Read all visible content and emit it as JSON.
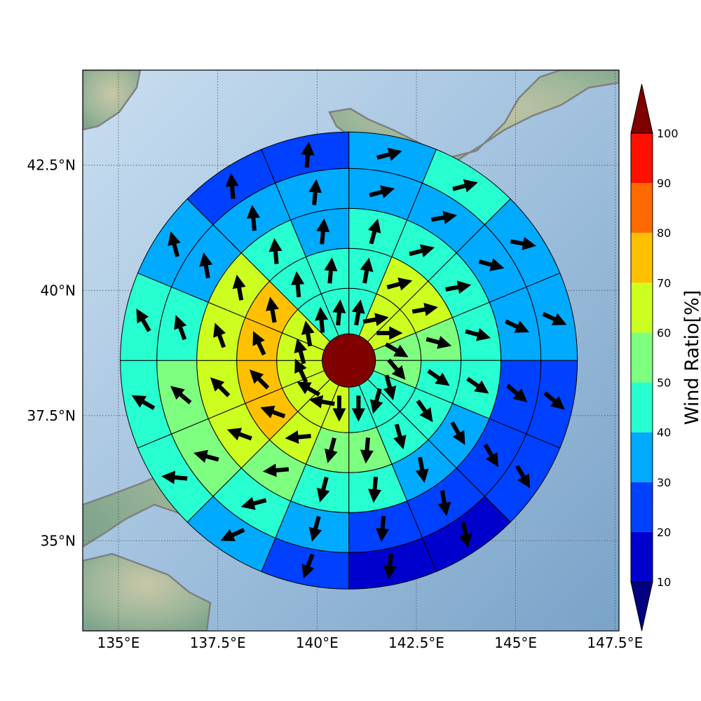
{
  "map": {
    "x_ticks": [
      {
        "lon": 135,
        "label": "135°E"
      },
      {
        "lon": 137.5,
        "label": "137.5°E"
      },
      {
        "lon": 140,
        "label": "140°E"
      },
      {
        "lon": 142.5,
        "label": "142.5°E"
      },
      {
        "lon": 145,
        "label": "145°E"
      },
      {
        "lon": 147.5,
        "label": "147.5°E"
      }
    ],
    "y_ticks": [
      {
        "lat": 35,
        "label": "35°N"
      },
      {
        "lat": 37.5,
        "label": "37.5°N"
      },
      {
        "lat": 40,
        "label": "40°N"
      },
      {
        "lat": 42.5,
        "label": "42.5°N"
      }
    ],
    "lon_range": [
      134.1,
      147.6
    ],
    "lat_range": [
      33.2,
      44.4
    ],
    "center": {
      "lon": 140.8,
      "lat": 38.6
    }
  },
  "colorbar": {
    "label": "Wind Ratio[%]",
    "ticks": [
      "10",
      "20",
      "30",
      "40",
      "50",
      "60",
      "70",
      "80",
      "90",
      "100"
    ],
    "levels": [
      10,
      20,
      30,
      40,
      50,
      60,
      70,
      80,
      90,
      100
    ],
    "colors": [
      "#0000cd",
      "#0040ff",
      "#00aaff",
      "#28ffd0",
      "#7fff7f",
      "#ccff20",
      "#ffc000",
      "#ff6a00",
      "#ff1000"
    ],
    "under_color": "#000080",
    "over_color": "#800000"
  },
  "chart_data": {
    "type": "polar-sector-map",
    "sectors_per_ring": 16,
    "sector_order": "clockwise from north",
    "center_value": 100,
    "rings": [
      {
        "ring": 1,
        "values": [
          45,
          62,
          62,
          55,
          55,
          45,
          45,
          45,
          62,
          62,
          62,
          65,
          65,
          65,
          45,
          45
        ],
        "wind_dir_deg": [
          10,
          80,
          90,
          120,
          140,
          165,
          195,
          180,
          180,
          280,
          300,
          335,
          345,
          350,
          355,
          5
        ]
      },
      {
        "ring": 2,
        "values": [
          45,
          62,
          62,
          55,
          45,
          45,
          45,
          55,
          55,
          62,
          72,
          72,
          72,
          72,
          45,
          45
        ],
        "wind_dir_deg": [
          10,
          75,
          80,
          105,
          125,
          145,
          165,
          185,
          195,
          265,
          290,
          315,
          335,
          350,
          355,
          5
        ]
      },
      {
        "ring": 3,
        "values": [
          45,
          45,
          45,
          45,
          45,
          35,
          35,
          45,
          45,
          55,
          62,
          62,
          62,
          62,
          45,
          35
        ],
        "wind_dir_deg": [
          15,
          75,
          80,
          105,
          125,
          150,
          170,
          185,
          195,
          265,
          290,
          315,
          340,
          350,
          355,
          5
        ]
      },
      {
        "ring": 4,
        "values": [
          35,
          35,
          35,
          35,
          25,
          25,
          25,
          25,
          35,
          45,
          55,
          55,
          45,
          35,
          35,
          35
        ],
        "wind_dir_deg": [
          75,
          80,
          105,
          115,
          130,
          150,
          170,
          185,
          195,
          255,
          285,
          310,
          340,
          350,
          355,
          5
        ]
      },
      {
        "ring": 5,
        "values": [
          35,
          45,
          35,
          35,
          25,
          25,
          15,
          15,
          25,
          35,
          45,
          45,
          45,
          35,
          25,
          25
        ],
        "wind_dir_deg": [
          75,
          75,
          100,
          115,
          130,
          150,
          170,
          185,
          200,
          245,
          275,
          300,
          330,
          345,
          355,
          5
        ]
      }
    ]
  }
}
